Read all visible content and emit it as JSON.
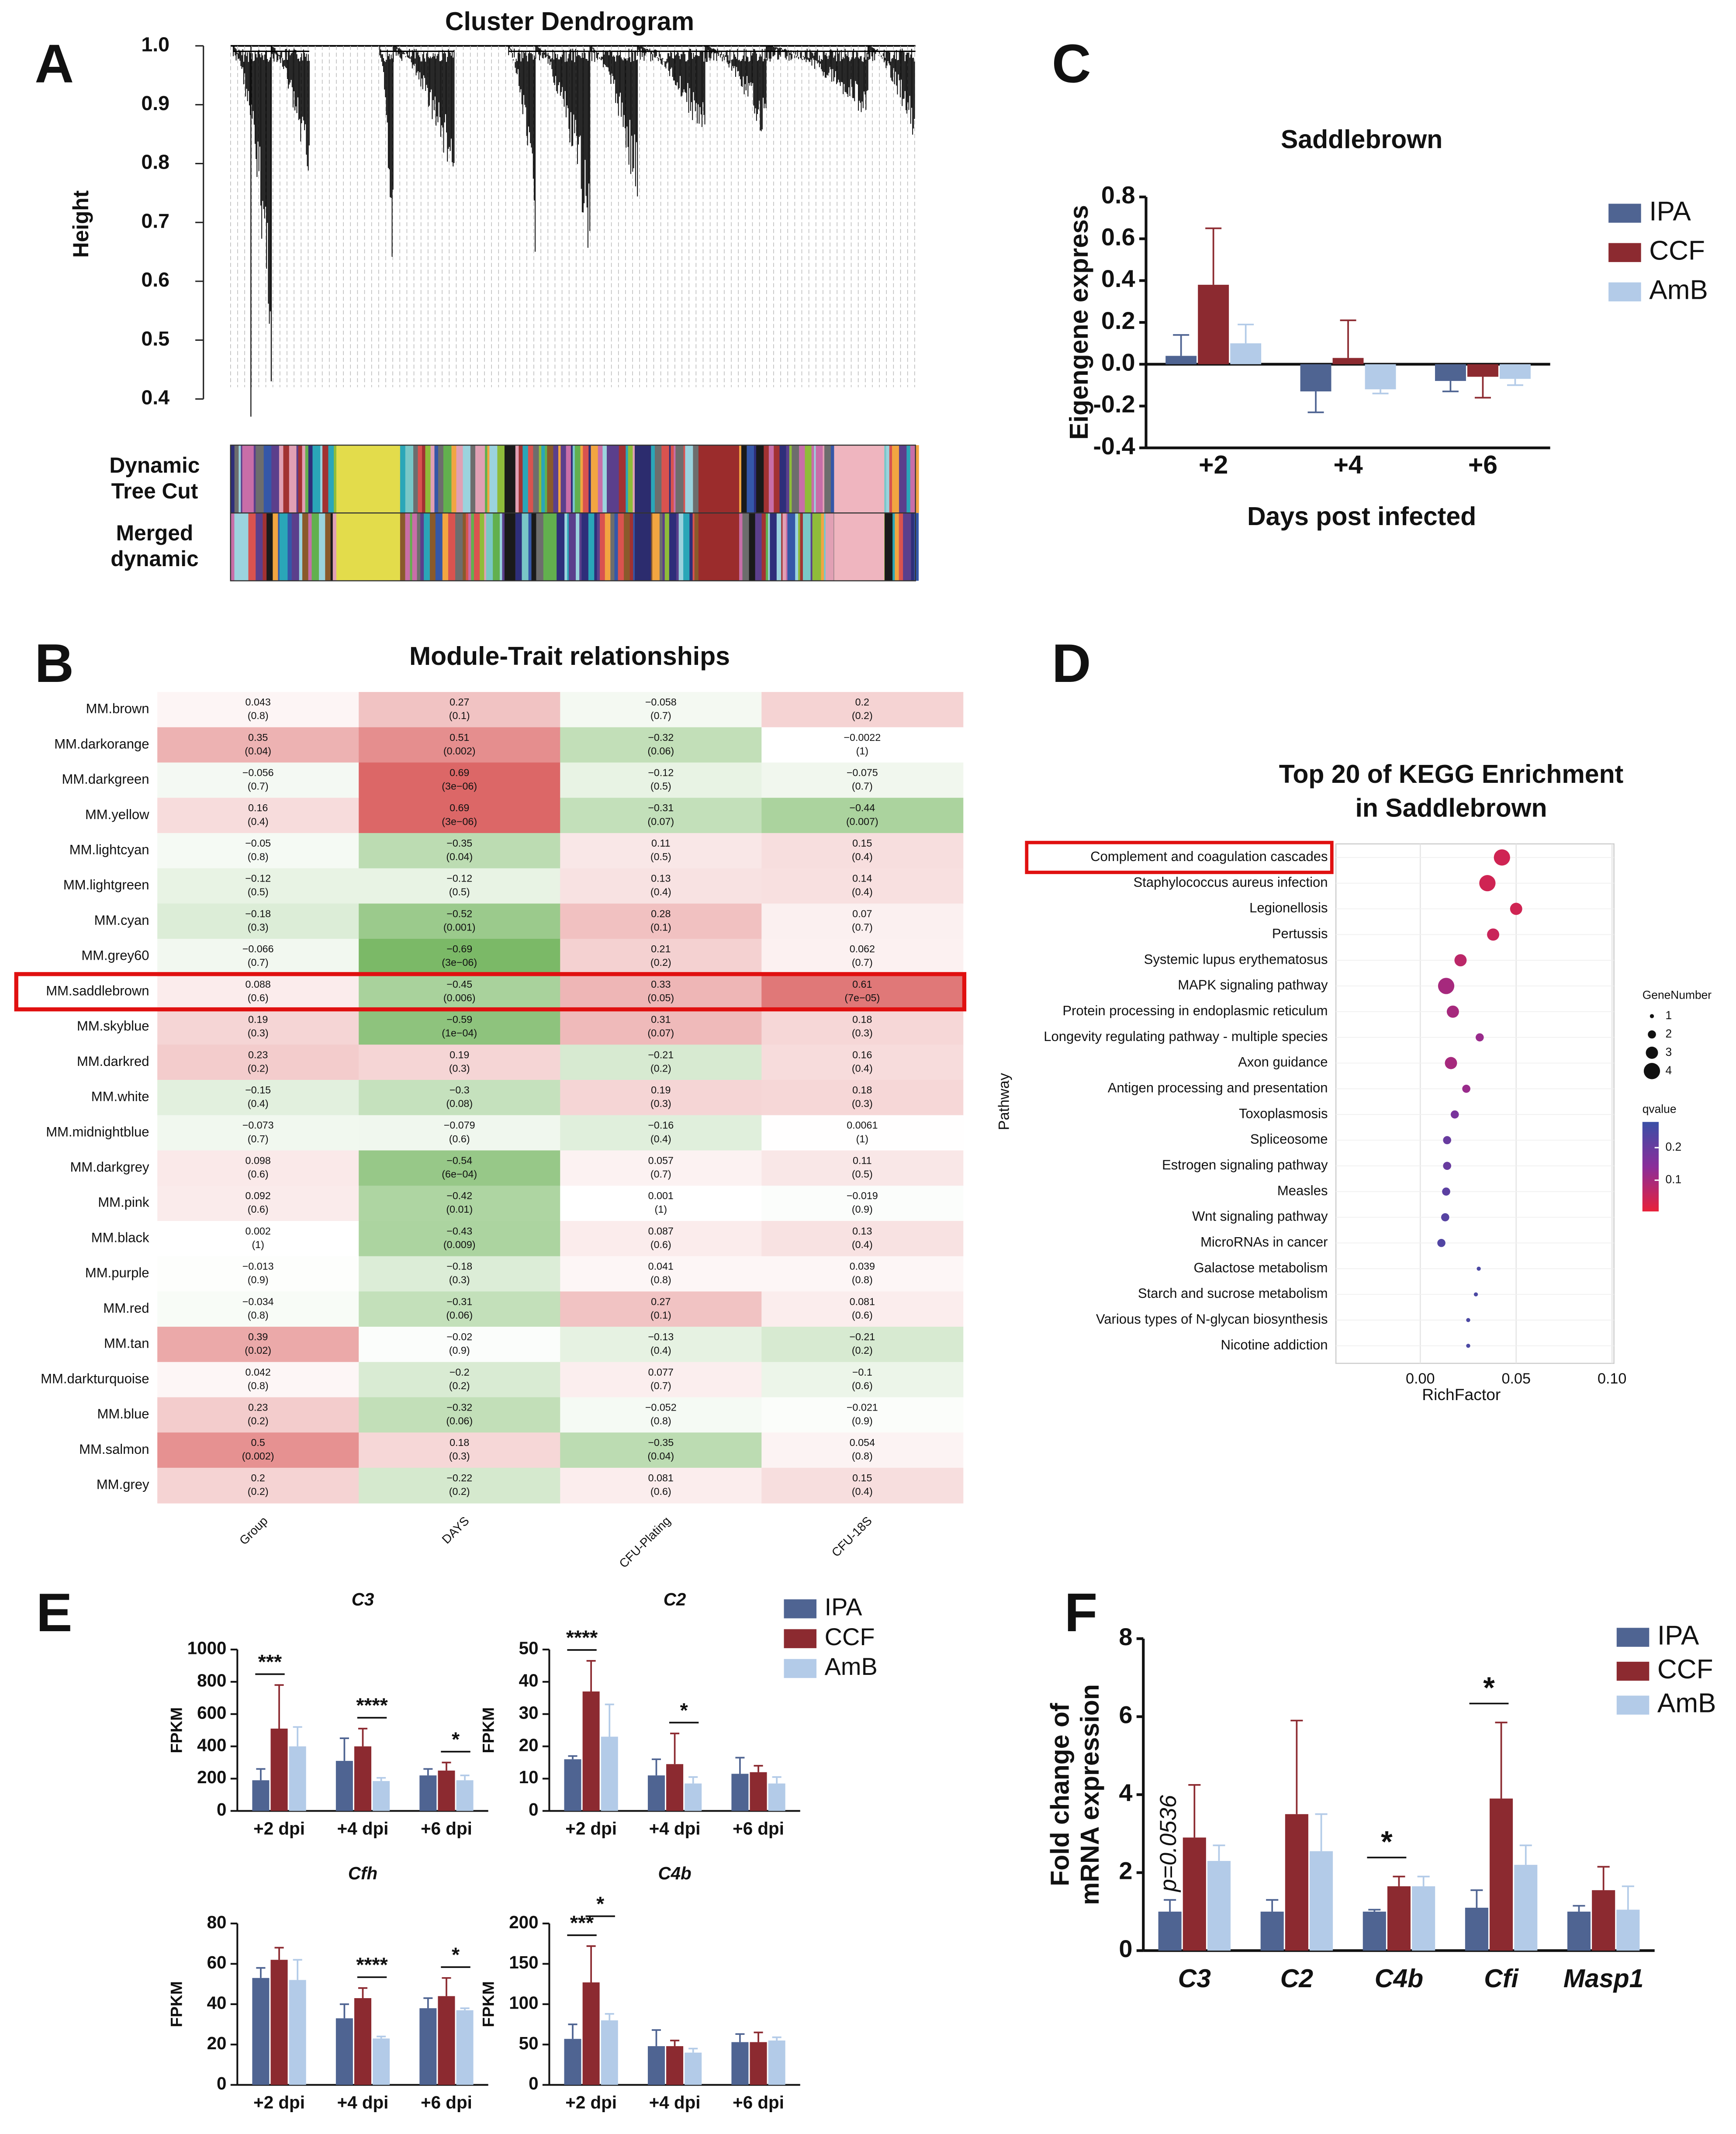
{
  "chart_data": [
    {
      "type": "dendrogram",
      "panel": "A",
      "title": "Cluster Dendrogram",
      "ylabel": "Height",
      "ylim": [
        0.34,
        1.0
      ],
      "yticks": [
        0.4,
        0.5,
        0.6,
        0.7,
        0.8,
        0.9,
        {
          "value": 1,
          "label": "1.0"
        }
      ],
      "track_labels": [
        [
          "Dynamic",
          "Tree Cut"
        ],
        [
          "Merged",
          "dynamic"
        ]
      ]
    },
    {
      "type": "heatmap",
      "panel": "B",
      "title": "Module-Trait relationships",
      "rows": [
        "MM.brown",
        "MM.darkorange",
        "MM.darkgreen",
        "MM.yellow",
        "MM.lightcyan",
        "MM.lightgreen",
        "MM.cyan",
        "MM.grey60",
        "MM.saddlebrown",
        "MM.skyblue",
        "MM.darkred",
        "MM.white",
        "MM.midnightblue",
        "MM.darkgrey",
        "MM.pink",
        "MM.black",
        "MM.purple",
        "MM.red",
        "MM.tan",
        "MM.darkturquoise",
        "MM.blue",
        "MM.salmon",
        "MM.grey"
      ],
      "columns": [
        "Group",
        "DAYS",
        "CFU-Plating",
        "CFU-18S"
      ],
      "values": [
        [
          0.043,
          0.27,
          -0.058,
          0.2
        ],
        [
          0.35,
          0.51,
          -0.32,
          -0.0022
        ],
        [
          -0.056,
          0.69,
          -0.12,
          -0.075
        ],
        [
          0.16,
          0.69,
          -0.31,
          -0.44
        ],
        [
          -0.05,
          -0.35,
          0.11,
          0.15
        ],
        [
          -0.12,
          -0.12,
          0.13,
          0.14
        ],
        [
          -0.18,
          -0.52,
          0.28,
          0.07
        ],
        [
          -0.066,
          -0.69,
          0.21,
          0.062
        ],
        [
          0.088,
          -0.45,
          0.33,
          0.61
        ],
        [
          0.19,
          -0.59,
          0.31,
          0.18
        ],
        [
          0.23,
          0.19,
          -0.21,
          0.16
        ],
        [
          -0.15,
          -0.3,
          0.19,
          0.18
        ],
        [
          -0.073,
          -0.079,
          -0.16,
          0.0061
        ],
        [
          0.098,
          -0.54,
          0.057,
          0.11
        ],
        [
          0.092,
          -0.42,
          0.001,
          -0.019
        ],
        [
          0.002,
          -0.43,
          0.087,
          0.13
        ],
        [
          -0.013,
          -0.18,
          0.041,
          0.039
        ],
        [
          -0.034,
          -0.31,
          0.27,
          0.081
        ],
        [
          0.39,
          -0.02,
          -0.13,
          -0.21
        ],
        [
          0.042,
          -0.2,
          0.077,
          -0.1
        ],
        [
          0.23,
          -0.32,
          -0.052,
          -0.021
        ],
        [
          0.5,
          0.18,
          -0.35,
          0.054
        ],
        [
          0.2,
          -0.22,
          0.081,
          0.15
        ]
      ],
      "value_labels": [
        [
          "0.043",
          "0.27",
          "−0.058",
          "0.2"
        ],
        [
          "0.35",
          "0.51",
          "−0.32",
          "−0.0022"
        ],
        [
          "−0.056",
          "0.69",
          "−0.12",
          "−0.075"
        ],
        [
          "0.16",
          "0.69",
          "−0.31",
          "−0.44"
        ],
        [
          "−0.05",
          "−0.35",
          "0.11",
          "0.15"
        ],
        [
          "−0.12",
          "−0.12",
          "0.13",
          "0.14"
        ],
        [
          "−0.18",
          "−0.52",
          "0.28",
          "0.07"
        ],
        [
          "−0.066",
          "−0.69",
          "0.21",
          "0.062"
        ],
        [
          "0.088",
          "−0.45",
          "0.33",
          "0.61"
        ],
        [
          "0.19",
          "−0.59",
          "0.31",
          "0.18"
        ],
        [
          "0.23",
          "0.19",
          "−0.21",
          "0.16"
        ],
        [
          "−0.15",
          "−0.3",
          "0.19",
          "0.18"
        ],
        [
          "−0.073",
          "−0.079",
          "−0.16",
          "0.0061"
        ],
        [
          "0.098",
          "−0.54",
          "0.057",
          "0.11"
        ],
        [
          "0.092",
          "−0.42",
          "0.001",
          "−0.019"
        ],
        [
          "0.002",
          "−0.43",
          "0.087",
          "0.13"
        ],
        [
          "−0.013",
          "−0.18",
          "0.041",
          "0.039"
        ],
        [
          "−0.034",
          "−0.31",
          "0.27",
          "0.081"
        ],
        [
          "0.39",
          "−0.02",
          "−0.13",
          "−0.21"
        ],
        [
          "0.042",
          "−0.2",
          "0.077",
          "−0.1"
        ],
        [
          "0.23",
          "−0.32",
          "−0.052",
          "−0.021"
        ],
        [
          "0.5",
          "0.18",
          "−0.35",
          "0.054"
        ],
        [
          "0.2",
          "−0.22",
          "0.081",
          "0.15"
        ]
      ],
      "p_labels": [
        [
          "(0.8)",
          "(0.1)",
          "(0.7)",
          "(0.2)"
        ],
        [
          "(0.04)",
          "(0.002)",
          "(0.06)",
          "(1)"
        ],
        [
          "(0.7)",
          "(3e−06)",
          "(0.5)",
          "(0.7)"
        ],
        [
          "(0.4)",
          "(3e−06)",
          "(0.07)",
          "(0.007)"
        ],
        [
          "(0.8)",
          "(0.04)",
          "(0.5)",
          "(0.4)"
        ],
        [
          "(0.5)",
          "(0.5)",
          "(0.4)",
          "(0.4)"
        ],
        [
          "(0.3)",
          "(0.001)",
          "(0.1)",
          "(0.7)"
        ],
        [
          "(0.7)",
          "(3e−06)",
          "(0.2)",
          "(0.7)"
        ],
        [
          "(0.6)",
          "(0.006)",
          "(0.05)",
          "(7e−05)"
        ],
        [
          "(0.3)",
          "(1e−04)",
          "(0.07)",
          "(0.3)"
        ],
        [
          "(0.2)",
          "(0.3)",
          "(0.2)",
          "(0.4)"
        ],
        [
          "(0.4)",
          "(0.08)",
          "(0.3)",
          "(0.3)"
        ],
        [
          "(0.7)",
          "(0.6)",
          "(0.4)",
          "(1)"
        ],
        [
          "(0.6)",
          "(6e−04)",
          "(0.7)",
          "(0.5)"
        ],
        [
          "(0.6)",
          "(0.01)",
          "(1)",
          "(0.9)"
        ],
        [
          "(1)",
          "(0.009)",
          "(0.6)",
          "(0.4)"
        ],
        [
          "(0.9)",
          "(0.3)",
          "(0.8)",
          "(0.8)"
        ],
        [
          "(0.8)",
          "(0.06)",
          "(0.1)",
          "(0.6)"
        ],
        [
          "(0.02)",
          "(0.9)",
          "(0.4)",
          "(0.2)"
        ],
        [
          "(0.8)",
          "(0.2)",
          "(0.7)",
          "(0.6)"
        ],
        [
          "(0.2)",
          "(0.06)",
          "(0.8)",
          "(0.9)"
        ],
        [
          "(0.002)",
          "(0.3)",
          "(0.04)",
          "(0.8)"
        ],
        [
          "(0.2)",
          "(0.2)",
          "(0.6)",
          "(0.4)"
        ]
      ],
      "zlim": [
        -1,
        1
      ],
      "colors": [
        "#3f9a22",
        "#ffffff",
        "#cc2222"
      ],
      "highlight_row": 8
    },
    {
      "type": "bar",
      "panel": "C",
      "title": "Saddlebrown",
      "xlabel": "Days post infected",
      "ylabel": "Eigengene express",
      "categories": [
        "+2",
        "+4",
        "+6"
      ],
      "series": [
        {
          "name": "IPA",
          "color": "#4f6492",
          "values": [
            0.04,
            -0.13,
            -0.08
          ],
          "errors": [
            0.1,
            0.1,
            0.05
          ]
        },
        {
          "name": "CCF",
          "color": "#8c2a30",
          "values": [
            0.38,
            0.03,
            -0.06
          ],
          "errors": [
            0.27,
            0.18,
            0.1
          ]
        },
        {
          "name": "AmB",
          "color": "#b3cbe8",
          "values": [
            0.1,
            -0.12,
            -0.07
          ],
          "errors": [
            0.09,
            0.02,
            0.03
          ]
        }
      ],
      "ylim": [
        -0.4,
        0.8
      ],
      "yticks": [
        -0.4,
        -0.2,
        {
          "value": 0,
          "label": "0.0"
        },
        0.2,
        0.4,
        0.6,
        0.8
      ],
      "legend": "right"
    },
    {
      "type": "dot",
      "panel": "D",
      "title": [
        "Top 20 of KEGG Enrichment",
        "in Saddlebrown"
      ],
      "xlabel": "RichFactor",
      "ylabel": "Pathway",
      "categories": [
        "Complement and coagulation cascades",
        "Staphylococcus aureus infection",
        "Legionellosis",
        "Pertussis",
        "Systemic lupus erythematosus",
        "MAPK signaling pathway",
        "Protein processing in endoplasmic reticulum",
        "Longevity regulating pathway - multiple species",
        "Axon guidance",
        "Antigen processing and presentation",
        "Toxoplasmosis",
        "Spliceosome",
        "Estrogen signaling pathway",
        "Measles",
        "Wnt signaling pathway",
        "MicroRNAs in cancer",
        "Galactose metabolism",
        "Starch and sucrose metabolism",
        "Various types of N-glycan biosynthesis",
        "Nicotine addiction"
      ],
      "values": [
        0.0426,
        0.035,
        0.05,
        0.038,
        0.021,
        0.0135,
        0.017,
        0.031,
        0.016,
        0.024,
        0.018,
        0.014,
        0.014,
        0.0135,
        0.013,
        0.011,
        0.0305,
        0.029,
        0.025,
        0.025
      ],
      "sizes": [
        4,
        4,
        3,
        3,
        3,
        4,
        3,
        2,
        3,
        2,
        2,
        2,
        2,
        2,
        2,
        2,
        1,
        1,
        1,
        1
      ],
      "qvalues": [
        0.04,
        0.04,
        0.04,
        0.05,
        0.07,
        0.1,
        0.1,
        0.12,
        0.1,
        0.12,
        0.17,
        0.2,
        0.2,
        0.22,
        0.23,
        0.24,
        0.25,
        0.25,
        0.25,
        0.25
      ],
      "xlim": [
        -0.044,
        0.101
      ],
      "xticks": [
        {
          "value": 0,
          "label": "0.00"
        },
        {
          "value": 0.05,
          "label": "0.05"
        },
        {
          "value": 0.1,
          "label": "0.10"
        }
      ],
      "size_title": "GeneNumber",
      "size_legend": [
        1,
        2,
        3,
        4
      ],
      "color_title": "qvalue",
      "qlim": [
        0.004,
        0.279
      ],
      "qticks": [
        0.2,
        0.1
      ],
      "color_scale": [
        "#e8213a",
        "#8a2d9a",
        "#3a4fa6"
      ],
      "grid": true,
      "highlight_row": 0
    },
    {
      "type": "bar",
      "panel": "E",
      "title": "C3",
      "ylabel": "FPKM",
      "categories": [
        "+2 dpi",
        "+4 dpi",
        "+6 dpi"
      ],
      "series": [
        {
          "name": "IPA",
          "color": "#4f6492",
          "values": [
            190,
            310,
            220
          ],
          "errors": [
            70,
            140,
            40
          ]
        },
        {
          "name": "CCF",
          "color": "#8c2a30",
          "values": [
            510,
            400,
            250
          ],
          "errors": [
            270,
            110,
            50
          ]
        },
        {
          "name": "AmB",
          "color": "#b3cbe8",
          "values": [
            400,
            185,
            190
          ],
          "errors": [
            120,
            20,
            30
          ]
        }
      ],
      "ylim": [
        0,
        1000
      ],
      "yticks": [
        0,
        200,
        400,
        600,
        800,
        1000
      ],
      "annotations": [
        {
          "text": "***",
          "category": 0,
          "series": [
            0,
            1
          ]
        },
        {
          "text": "****",
          "category": 1,
          "series": [
            1,
            2
          ]
        },
        {
          "text": "*",
          "category": 2,
          "series": [
            1,
            2
          ]
        }
      ]
    },
    {
      "type": "bar",
      "title": "C2",
      "ylabel": "FPKM",
      "categories": [
        "+2 dpi",
        "+4 dpi",
        "+6 dpi"
      ],
      "series": [
        {
          "name": "IPA",
          "color": "#4f6492",
          "values": [
            16,
            11,
            11.5
          ],
          "errors": [
            1,
            5,
            5
          ]
        },
        {
          "name": "CCF",
          "color": "#8c2a30",
          "values": [
            37,
            14.5,
            12
          ],
          "errors": [
            9.5,
            9.5,
            2
          ]
        },
        {
          "name": "AmB",
          "color": "#b3cbe8",
          "values": [
            23,
            8.5,
            8.5
          ],
          "errors": [
            10,
            2,
            2
          ]
        }
      ],
      "ylim": [
        0,
        50
      ],
      "yticks": [
        0,
        10,
        20,
        30,
        40,
        50
      ],
      "legend": "right",
      "annotations": [
        {
          "text": "****",
          "category": 0,
          "series": [
            0,
            1
          ]
        },
        {
          "text": "*",
          "category": 1,
          "series": [
            1,
            2
          ]
        }
      ]
    },
    {
      "type": "bar",
      "title": "Cfh",
      "ylabel": "FPKM",
      "categories": [
        "+2 dpi",
        "+4 dpi",
        "+6 dpi"
      ],
      "series": [
        {
          "name": "IPA",
          "color": "#4f6492",
          "values": [
            53,
            33,
            38
          ],
          "errors": [
            5,
            7,
            5
          ]
        },
        {
          "name": "CCF",
          "color": "#8c2a30",
          "values": [
            62,
            43,
            44
          ],
          "errors": [
            6,
            5,
            9
          ]
        },
        {
          "name": "AmB",
          "color": "#b3cbe8",
          "values": [
            52,
            23,
            37
          ],
          "errors": [
            10,
            1,
            1
          ]
        }
      ],
      "ylim": [
        0,
        80
      ],
      "yticks": [
        0,
        20,
        40,
        60,
        80
      ],
      "annotations": [
        {
          "text": "****",
          "category": 1,
          "series": [
            1,
            2
          ]
        },
        {
          "text": "*",
          "category": 2,
          "series": [
            1,
            2
          ]
        }
      ]
    },
    {
      "type": "bar",
      "title": "C4b",
      "ylabel": "FPKM",
      "categories": [
        "+2 dpi",
        "+4 dpi",
        "+6 dpi"
      ],
      "series": [
        {
          "name": "IPA",
          "color": "#4f6492",
          "values": [
            57,
            48,
            53
          ],
          "errors": [
            18,
            20,
            10
          ]
        },
        {
          "name": "CCF",
          "color": "#8c2a30",
          "values": [
            127,
            48,
            53
          ],
          "errors": [
            45,
            7,
            12
          ]
        },
        {
          "name": "AmB",
          "color": "#b3cbe8",
          "values": [
            80,
            40,
            55
          ],
          "errors": [
            8,
            5,
            4
          ]
        }
      ],
      "ylim": [
        0,
        200
      ],
      "yticks": [
        0,
        50,
        100,
        150,
        200
      ],
      "annotations": [
        {
          "text": "***",
          "category": 0,
          "series": [
            0,
            1
          ]
        },
        {
          "text": "*",
          "category": 0,
          "series": [
            1,
            2
          ]
        }
      ]
    },
    {
      "type": "bar",
      "panel": "F",
      "ylabel": [
        "Fold change of",
        "mRNA expression"
      ],
      "categories": [
        "C3",
        "C2",
        "C4b",
        "Cfi",
        "Masp1"
      ],
      "series": [
        {
          "name": "IPA",
          "color": "#4f6492",
          "values": [
            1.0,
            1.0,
            1.0,
            1.1,
            1.0
          ],
          "errors": [
            0.3,
            0.3,
            0.05,
            0.45,
            0.15
          ]
        },
        {
          "name": "CCF",
          "color": "#8c2a30",
          "values": [
            2.9,
            3.5,
            1.65,
            3.9,
            1.55
          ],
          "errors": [
            1.35,
            2.4,
            0.25,
            1.95,
            0.6
          ]
        },
        {
          "name": "AmB",
          "color": "#b3cbe8",
          "values": [
            2.3,
            2.55,
            1.65,
            2.2,
            1.05
          ],
          "errors": [
            0.4,
            0.95,
            0.25,
            0.5,
            0.6
          ]
        }
      ],
      "ylim": [
        0,
        8
      ],
      "yticks": [
        0,
        2,
        4,
        6,
        8
      ],
      "legend": "right",
      "annotations": [
        {
          "text": "p=0.0536",
          "category": 0,
          "series": [
            0
          ],
          "rotated": true
        },
        {
          "text": "*",
          "category": 2,
          "series": [
            0,
            1
          ]
        },
        {
          "text": "*",
          "category": 3,
          "series": [
            0,
            1
          ]
        }
      ]
    }
  ]
}
